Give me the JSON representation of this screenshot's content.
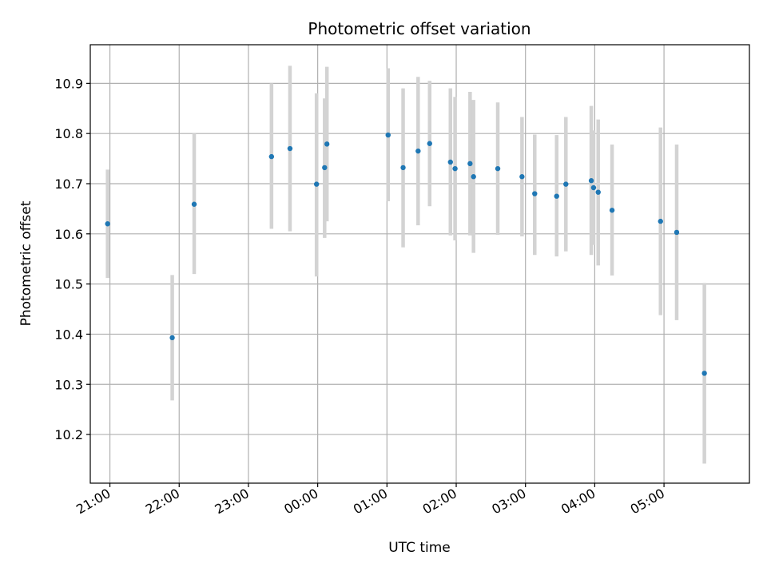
{
  "chart_data": {
    "type": "scatter",
    "title": "Photometric offset variation",
    "xlabel": "UTC time",
    "ylabel": "Photometric offset",
    "xlim": [
      "20:43",
      "06:14"
    ],
    "ylim": [
      10.103,
      10.977
    ],
    "x_ticks": [
      "21:00",
      "22:00",
      "23:00",
      "00:00",
      "01:00",
      "02:00",
      "03:00",
      "04:00",
      "05:00"
    ],
    "y_ticks": [
      "10.2",
      "10.3",
      "10.4",
      "10.5",
      "10.6",
      "10.7",
      "10.8",
      "10.9"
    ],
    "grid": true,
    "colors": {
      "points": "#1f77b4",
      "errorbars": "#d3d3d3",
      "grid": "#b0b0b0"
    },
    "points": [
      {
        "time": "20:58",
        "y": 10.62,
        "err_low": 10.512,
        "err_high": 10.728
      },
      {
        "time": "21:54",
        "y": 10.393,
        "err_low": 10.268,
        "err_high": 10.518
      },
      {
        "time": "22:13",
        "y": 10.659,
        "err_low": 10.52,
        "err_high": 10.8
      },
      {
        "time": "23:20",
        "y": 10.754,
        "err_low": 10.61,
        "err_high": 10.9
      },
      {
        "time": "23:36",
        "y": 10.77,
        "err_low": 10.605,
        "err_high": 10.935
      },
      {
        "time": "23:59",
        "y": 10.699,
        "err_low": 10.515,
        "err_high": 10.88
      },
      {
        "time": "00:06",
        "y": 10.732,
        "err_low": 10.592,
        "err_high": 10.87
      },
      {
        "time": "00:08",
        "y": 10.779,
        "err_low": 10.625,
        "err_high": 10.933
      },
      {
        "time": "01:01",
        "y": 10.797,
        "err_low": 10.665,
        "err_high": 10.93
      },
      {
        "time": "01:14",
        "y": 10.732,
        "err_low": 10.573,
        "err_high": 10.89
      },
      {
        "time": "01:27",
        "y": 10.765,
        "err_low": 10.617,
        "err_high": 10.913
      },
      {
        "time": "01:37",
        "y": 10.78,
        "err_low": 10.655,
        "err_high": 10.905
      },
      {
        "time": "01:55",
        "y": 10.743,
        "err_low": 10.597,
        "err_high": 10.89
      },
      {
        "time": "01:59",
        "y": 10.73,
        "err_low": 10.587,
        "err_high": 10.873
      },
      {
        "time": "02:12",
        "y": 10.74,
        "err_low": 10.597,
        "err_high": 10.883
      },
      {
        "time": "02:15",
        "y": 10.714,
        "err_low": 10.562,
        "err_high": 10.867
      },
      {
        "time": "02:36",
        "y": 10.73,
        "err_low": 10.598,
        "err_high": 10.862
      },
      {
        "time": "02:57",
        "y": 10.714,
        "err_low": 10.595,
        "err_high": 10.833
      },
      {
        "time": "03:08",
        "y": 10.68,
        "err_low": 10.558,
        "err_high": 10.798
      },
      {
        "time": "03:27",
        "y": 10.675,
        "err_low": 10.555,
        "err_high": 10.797
      },
      {
        "time": "03:35",
        "y": 10.699,
        "err_low": 10.565,
        "err_high": 10.833
      },
      {
        "time": "03:57",
        "y": 10.706,
        "err_low": 10.558,
        "err_high": 10.855
      },
      {
        "time": "03:59",
        "y": 10.692,
        "err_low": 10.578,
        "err_high": 10.806
      },
      {
        "time": "04:03",
        "y": 10.683,
        "err_low": 10.537,
        "err_high": 10.828
      },
      {
        "time": "04:15",
        "y": 10.647,
        "err_low": 10.517,
        "err_high": 10.778
      },
      {
        "time": "04:57",
        "y": 10.625,
        "err_low": 10.438,
        "err_high": 10.812
      },
      {
        "time": "05:11",
        "y": 10.603,
        "err_low": 10.428,
        "err_high": 10.778
      },
      {
        "time": "05:35",
        "y": 10.322,
        "err_low": 10.142,
        "err_high": 10.502
      }
    ]
  }
}
